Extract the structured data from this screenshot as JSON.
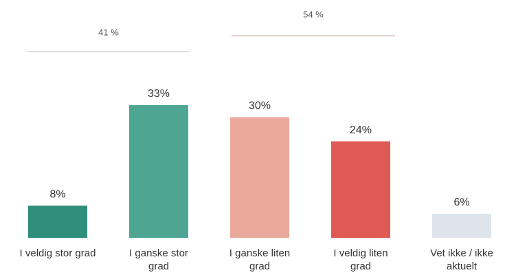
{
  "chart_data": {
    "type": "bar",
    "categories": [
      "I veldig stor grad",
      "I ganske stor\ngrad",
      "I ganske liten\ngrad",
      "I veldig liten\ngrad",
      "Vet ikke / ikke\naktuelt"
    ],
    "values": [
      8,
      33,
      30,
      24,
      6
    ],
    "value_labels": [
      "8%",
      "33%",
      "30%",
      "24%",
      "6%"
    ],
    "colors": [
      "#2f8f7c",
      "#4ea692",
      "#eba99b",
      "#e05a55",
      "#dfe4eb"
    ],
    "groups": [
      {
        "label": "41 %",
        "value": 41
      },
      {
        "label": "54 %",
        "value": 54
      }
    ]
  }
}
